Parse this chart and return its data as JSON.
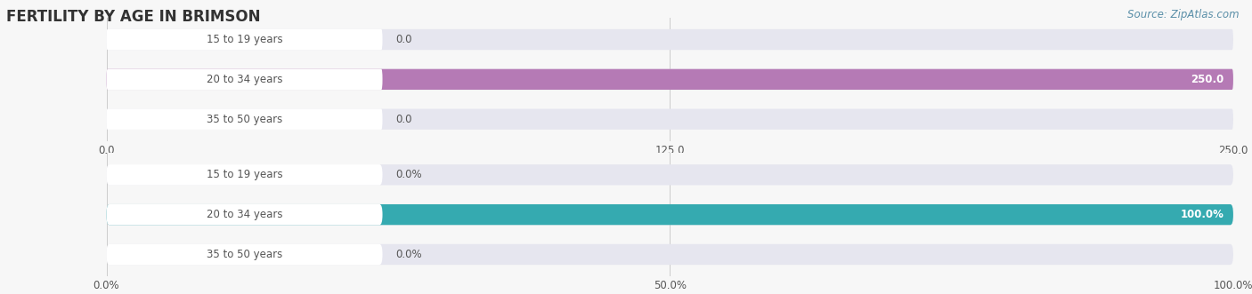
{
  "title": "FERTILITY BY AGE IN BRIMSON",
  "source": "Source: ZipAtlas.com",
  "top_chart": {
    "categories": [
      "15 to 19 years",
      "20 to 34 years",
      "35 to 50 years"
    ],
    "values": [
      0.0,
      250.0,
      0.0
    ],
    "bar_color": "#b57ab5",
    "bg_color": "#e6e6ef",
    "xlim": [
      0,
      250.0
    ],
    "xticks": [
      0.0,
      125.0,
      250.0
    ],
    "xtick_labels": [
      "0.0",
      "125.0",
      "250.0"
    ],
    "value_labels": [
      "0.0",
      "250.0",
      "0.0"
    ]
  },
  "bottom_chart": {
    "categories": [
      "15 to 19 years",
      "20 to 34 years",
      "35 to 50 years"
    ],
    "values": [
      0.0,
      100.0,
      0.0
    ],
    "bar_color": "#35aab0",
    "bg_color": "#e6e6ef",
    "xlim": [
      0,
      100.0
    ],
    "xticks": [
      0.0,
      50.0,
      100.0
    ],
    "xtick_labels": [
      "0.0%",
      "50.0%",
      "100.0%"
    ],
    "value_labels": [
      "0.0%",
      "100.0%",
      "0.0%"
    ]
  },
  "label_color": "#555555",
  "title_color": "#333333",
  "bar_height": 0.52,
  "bg_color": "#f7f7f7",
  "pill_color": "#ffffff",
  "source_color": "#5a8fa8"
}
